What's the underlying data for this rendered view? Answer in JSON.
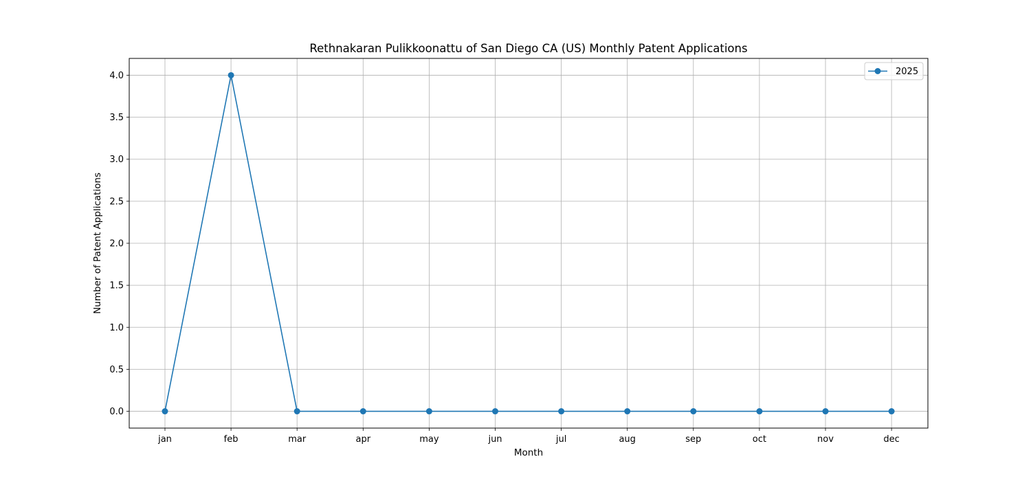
{
  "chart_data": {
    "type": "line",
    "title": "Rethnakaran Pulikkoonattu of San Diego CA (US) Monthly Patent Applications",
    "xlabel": "Month",
    "ylabel": "Number of Patent Applications",
    "categories": [
      "jan",
      "feb",
      "mar",
      "apr",
      "may",
      "jun",
      "jul",
      "aug",
      "sep",
      "oct",
      "nov",
      "dec"
    ],
    "series": [
      {
        "name": "2025",
        "values": [
          0,
          4,
          0,
          0,
          0,
          0,
          0,
          0,
          0,
          0,
          0,
          0
        ],
        "color": "#1f77b4",
        "marker": "circle"
      }
    ],
    "ylim": [
      -0.2,
      4.2
    ],
    "yticks": [
      0.0,
      0.5,
      1.0,
      1.5,
      2.0,
      2.5,
      3.0,
      3.5,
      4.0
    ],
    "ytick_labels": [
      "0.0",
      "0.5",
      "1.0",
      "1.5",
      "2.0",
      "2.5",
      "3.0",
      "3.5",
      "4.0"
    ],
    "grid": true,
    "legend_position": "top-right"
  }
}
